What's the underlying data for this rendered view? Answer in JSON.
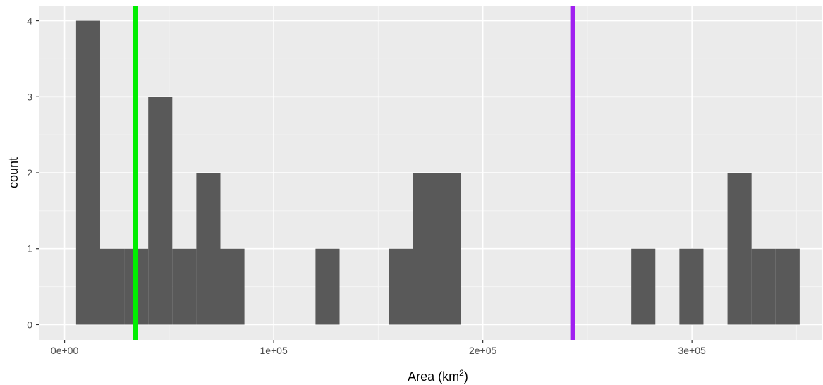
{
  "chart_data": {
    "type": "bar",
    "subtype": "histogram",
    "title": "",
    "xlabel": "Area (km",
    "xlabel_superscript": "2",
    "xlabel_suffix": ")",
    "ylabel": "count",
    "xlim": [
      -12000,
      362000
    ],
    "ylim": [
      -0.2,
      4.2
    ],
    "bin_width": 11500,
    "bins": [
      {
        "x0": 5500,
        "x1": 17000,
        "count": 4
      },
      {
        "x0": 17000,
        "x1": 28500,
        "count": 1
      },
      {
        "x0": 28500,
        "x1": 40000,
        "count": 1
      },
      {
        "x0": 40000,
        "x1": 51500,
        "count": 3
      },
      {
        "x0": 51500,
        "x1": 63000,
        "count": 1
      },
      {
        "x0": 63000,
        "x1": 74500,
        "count": 2
      },
      {
        "x0": 74500,
        "x1": 86000,
        "count": 1
      },
      {
        "x0": 120000,
        "x1": 131500,
        "count": 1
      },
      {
        "x0": 155000,
        "x1": 166500,
        "count": 1
      },
      {
        "x0": 166500,
        "x1": 178000,
        "count": 2
      },
      {
        "x0": 178000,
        "x1": 189500,
        "count": 2
      },
      {
        "x0": 271000,
        "x1": 282500,
        "count": 1
      },
      {
        "x0": 294000,
        "x1": 305500,
        "count": 1
      },
      {
        "x0": 317000,
        "x1": 328500,
        "count": 2
      },
      {
        "x0": 328500,
        "x1": 340000,
        "count": 1
      },
      {
        "x0": 340000,
        "x1": 351500,
        "count": 1
      }
    ],
    "x_ticks": [
      {
        "value": 0,
        "label": "0e+00"
      },
      {
        "value": 100000,
        "label": "1e+05"
      },
      {
        "value": 200000,
        "label": "2e+05"
      },
      {
        "value": 300000,
        "label": "3e+05"
      }
    ],
    "y_ticks": [
      {
        "value": 0,
        "label": "0"
      },
      {
        "value": 1,
        "label": "1"
      },
      {
        "value": 2,
        "label": "2"
      },
      {
        "value": 3,
        "label": "3"
      },
      {
        "value": 4,
        "label": "4"
      }
    ],
    "vlines": [
      {
        "x": 34000,
        "color": "#00ee00"
      },
      {
        "x": 243000,
        "color": "#a020f0"
      }
    ],
    "colors": {
      "bar": "#595959",
      "panel": "#ebebeb",
      "grid_major": "#ffffff",
      "grid_minor": "#f5f5f5",
      "tick_label": "#4d4d4d",
      "tick_mark": "#333333"
    },
    "grid": true,
    "legend": "none"
  }
}
